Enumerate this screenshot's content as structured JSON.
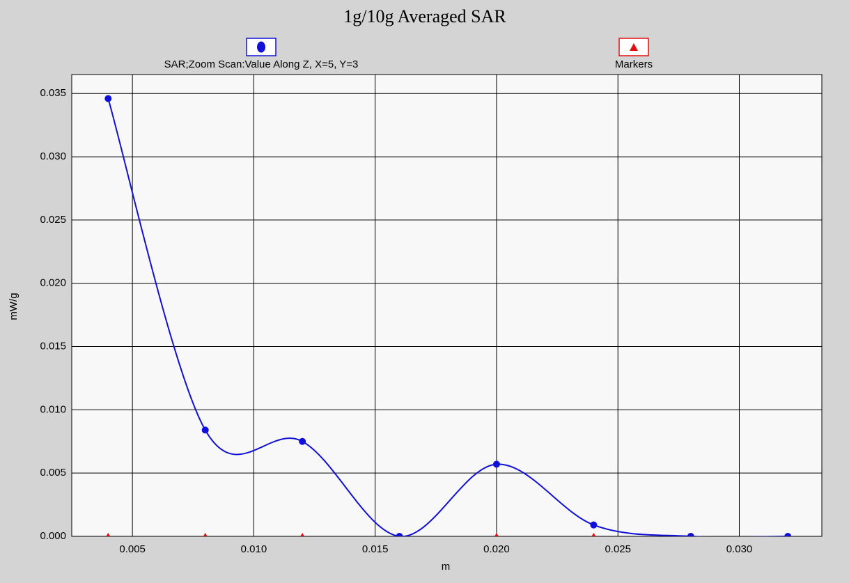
{
  "chart_data": {
    "type": "line",
    "title": "1g/10g Averaged SAR",
    "xlabel": "m",
    "ylabel": "mW/g",
    "x": [
      0.004,
      0.008,
      0.012,
      0.016,
      0.02,
      0.024,
      0.028,
      0.032
    ],
    "series": [
      {
        "name": "SAR;Zoom Scan:Value Along Z, X=5, Y=3",
        "color": "#1010d8",
        "marker": "circle",
        "values": [
          0.0346,
          0.0084,
          0.0075,
          0.0,
          0.0057,
          0.0009,
          0.0,
          0.0
        ]
      },
      {
        "name": "Markers",
        "color": "#e01010",
        "marker": "triangle",
        "values": [
          0,
          0,
          0,
          0,
          0,
          0,
          0,
          0
        ]
      }
    ],
    "xlim": [
      0.0025,
      0.0334
    ],
    "ylim": [
      0,
      0.0365
    ],
    "xticks": [
      0.005,
      {
        "value": 0.01,
        "label": "0.010"
      },
      0.015,
      {
        "value": 0.02,
        "label": "0.020"
      },
      0.025,
      {
        "value": 0.03,
        "label": "0.030"
      }
    ],
    "yticks": [
      {
        "value": 0,
        "label": "0.000"
      },
      0.005,
      {
        "value": 0.01,
        "label": "0.010"
      },
      0.015,
      {
        "value": 0.02,
        "label": "0.020"
      },
      0.025,
      {
        "value": 0.03,
        "label": "0.030"
      },
      0.035
    ],
    "grid": true
  }
}
